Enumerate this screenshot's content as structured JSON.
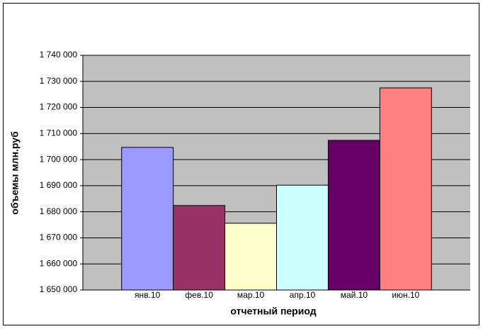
{
  "chart_data": {
    "type": "bar",
    "categories": [
      "янв.10",
      "фев.10",
      "мар.10",
      "апр.10",
      "май.10",
      "июн.10"
    ],
    "values": [
      1704700,
      1682400,
      1675600,
      1690200,
      1707400,
      1727500
    ],
    "colors": [
      "#9999ff",
      "#993366",
      "#ffffcc",
      "#ccffff",
      "#660066",
      "#ff8080"
    ],
    "ylim": [
      1650000,
      1740000
    ],
    "yticks": [
      {
        "value": 1650000,
        "label": "1 650 000"
      },
      {
        "value": 1660000,
        "label": "1 660 000"
      },
      {
        "value": 1670000,
        "label": "1 670 000"
      },
      {
        "value": 1680000,
        "label": "1 680 000"
      },
      {
        "value": 1690000,
        "label": "1 690 000"
      },
      {
        "value": 1700000,
        "label": "1 700 000"
      },
      {
        "value": 1710000,
        "label": "1 710 000"
      },
      {
        "value": 1720000,
        "label": "1 720 000"
      },
      {
        "value": 1730000,
        "label": "1 730 000"
      },
      {
        "value": 1740000,
        "label": "1 740 000"
      }
    ],
    "y_label": "объемы млн.руб",
    "x_label": "отчетный период",
    "grid": true
  }
}
